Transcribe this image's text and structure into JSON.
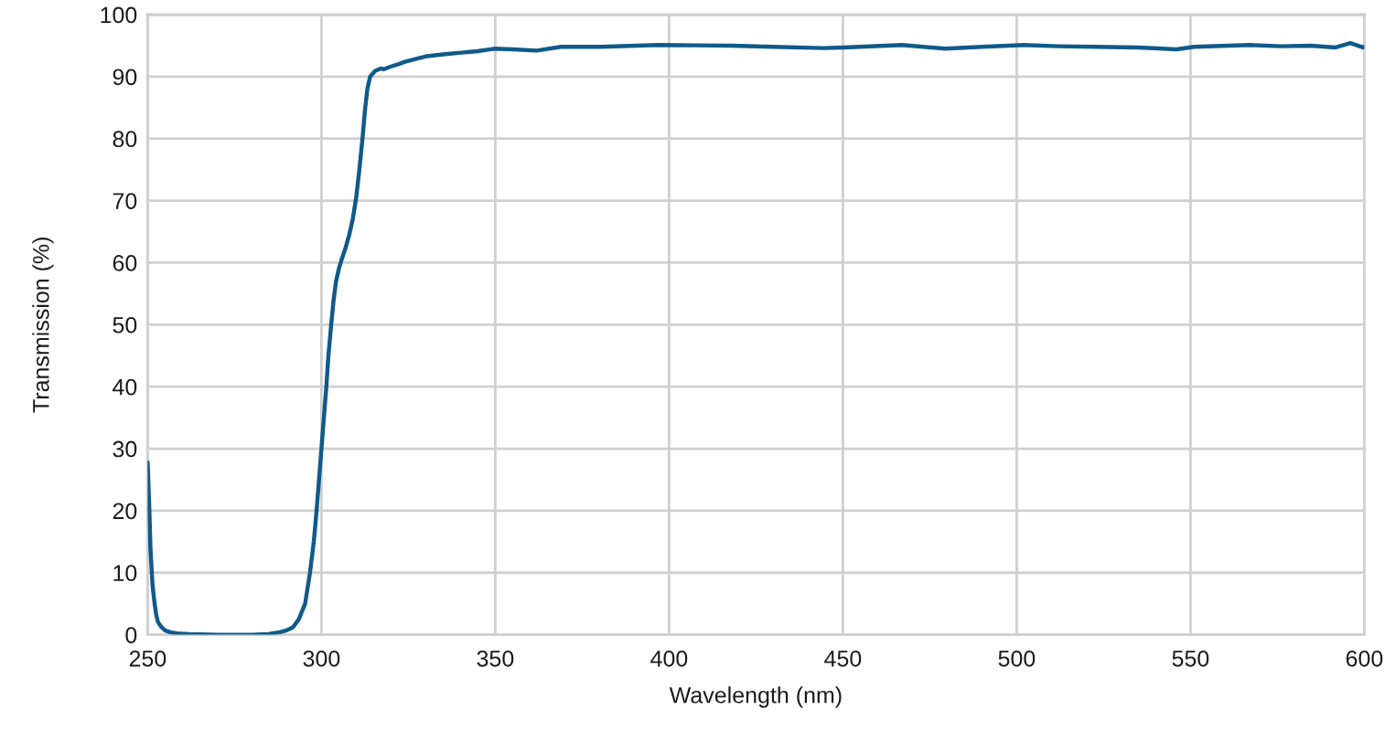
{
  "chart_data": {
    "type": "line",
    "xlabel": "Wavelength (nm)",
    "ylabel": "Transmission (%)",
    "series": [
      {
        "color": "#0f5a8a",
        "x": [
          250,
          250.5,
          250.8,
          251.4,
          252,
          252.5,
          253,
          254,
          255,
          256.5,
          258.4,
          262,
          270,
          280,
          284.7,
          288,
          290,
          291.8,
          293.5,
          295.3,
          296.7,
          297.8,
          298.6,
          299.3,
          300,
          300.7,
          301.4,
          302,
          302.8,
          303.5,
          304.2,
          305,
          305.8,
          307,
          308,
          309,
          310,
          311,
          311.8,
          312.5,
          313.2,
          314,
          315.4,
          317,
          318,
          319.8,
          322,
          324,
          326.8,
          330.4,
          335,
          340.9,
          345,
          349.6,
          355,
          361.9,
          368.9,
          380,
          397,
          418,
          430,
          444.4,
          450,
          467,
          479.4,
          490,
          502,
          512,
          523,
          535,
          546,
          551,
          567,
          576,
          584.7,
          591.7,
          596,
          599.6,
          600
        ],
        "values": [
          27.8,
          20,
          14,
          8,
          5,
          3.1,
          2,
          1.2,
          0.7,
          0.4,
          0.2,
          0.1,
          0,
          0,
          0.1,
          0.4,
          0.7,
          1.2,
          2.5,
          5,
          10,
          15,
          20,
          25,
          30,
          35,
          40,
          45,
          50,
          54,
          57,
          59,
          60.5,
          62.5,
          64.5,
          67,
          70.5,
          75.5,
          80,
          84.5,
          88,
          90,
          90.9,
          91.3,
          91.2,
          91.6,
          92,
          92.4,
          92.8,
          93.3,
          93.6,
          93.9,
          94.1,
          94.5,
          94.4,
          94.2,
          94.8,
          94.8,
          95.1,
          95.0,
          94.8,
          94.6,
          94.7,
          95.1,
          94.5,
          94.8,
          95.1,
          94.9,
          94.8,
          94.7,
          94.4,
          94.8,
          95.1,
          94.9,
          95.0,
          94.7,
          95.4,
          94.7,
          94.8
        ]
      }
    ],
    "xlim": [
      250,
      600
    ],
    "ylim": [
      0,
      100
    ],
    "xticks": [
      250,
      300,
      350,
      400,
      450,
      500,
      550,
      600
    ],
    "yticks": [
      0,
      10,
      20,
      30,
      40,
      50,
      60,
      70,
      80,
      90,
      100
    ],
    "grid": true,
    "line_style": "solid"
  }
}
